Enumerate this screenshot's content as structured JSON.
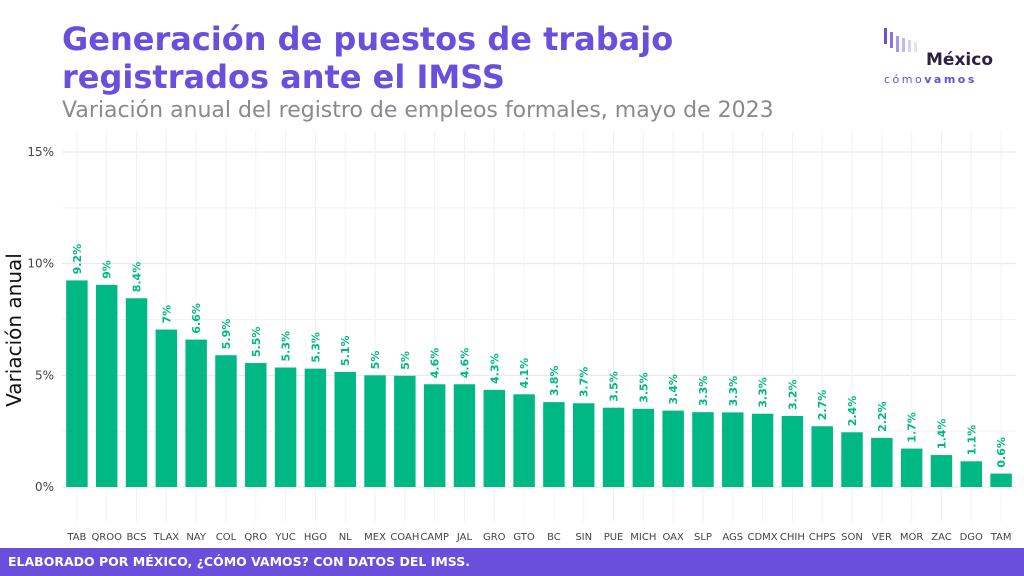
{
  "title_line1": "Generación de puestos de trabajo",
  "title_line2": "registrados ante el IMSS",
  "subtitle": "Variación anual del registro de empleos formales, mayo de 2023",
  "logo": {
    "word": "México",
    "tag_light": "cómo",
    "tag_bold": "vamos"
  },
  "footer": "ELABORADO POR MÉXICO, ¿CÓMO VAMOS? CON DATOS DEL IMSS.",
  "colors": {
    "bar": "#00b884",
    "label": "#00b884",
    "brand": "#6a4fdc"
  },
  "chart_data": {
    "type": "bar",
    "ylabel": "Variación anual",
    "ylim": [
      0,
      15
    ],
    "yticks": [
      0,
      5,
      10,
      15
    ],
    "ytick_labels": [
      "0%",
      "5%",
      "10%",
      "15%"
    ],
    "grid": true,
    "categories": [
      "TAB",
      "QROO",
      "BCS",
      "TLAX",
      "NAY",
      "COL",
      "QRO",
      "YUC",
      "HGO",
      "NL",
      "MEX",
      "COAH",
      "CAMP",
      "JAL",
      "GRO",
      "GTO",
      "BC",
      "SIN",
      "PUE",
      "MICH",
      "OAX",
      "SLP",
      "AGS",
      "CDMX",
      "CHIH",
      "CHPS",
      "SON",
      "VER",
      "MOR",
      "ZAC",
      "DGO",
      "TAM"
    ],
    "values": [
      9.25,
      9.05,
      8.45,
      7.05,
      6.6,
      5.9,
      5.55,
      5.35,
      5.3,
      5.15,
      5.0,
      4.98,
      4.6,
      4.6,
      4.35,
      4.15,
      3.8,
      3.75,
      3.55,
      3.5,
      3.42,
      3.35,
      3.34,
      3.28,
      3.18,
      2.72,
      2.45,
      2.2,
      1.72,
      1.43,
      1.15,
      0.6
    ],
    "data_labels": [
      "9.2%",
      "9%",
      "8.4%",
      "7%",
      "6.6%",
      "5.9%",
      "5.5%",
      "5.3%",
      "5.3%",
      "5.1%",
      "5%",
      "5%",
      "4.6%",
      "4.6%",
      "4.3%",
      "4.1%",
      "3.8%",
      "3.7%",
      "3.5%",
      "3.5%",
      "3.4%",
      "3.3%",
      "3.3%",
      "3.3%",
      "3.2%",
      "2.7%",
      "2.4%",
      "2.2%",
      "1.7%",
      "1.4%",
      "1.1%",
      "0.6%"
    ]
  }
}
